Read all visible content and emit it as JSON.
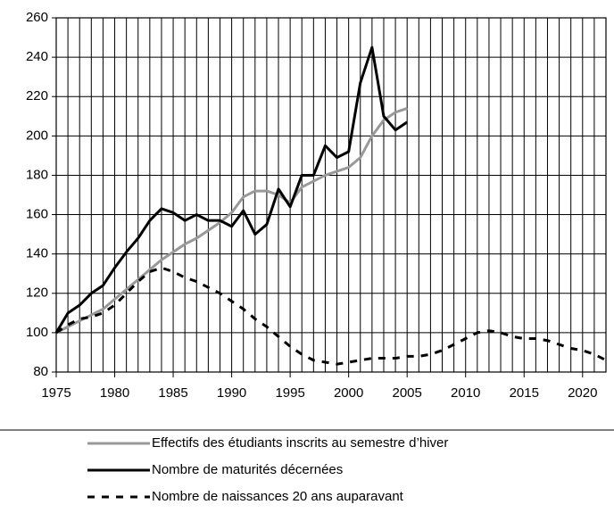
{
  "chart_data": {
    "type": "line",
    "x": [
      1975,
      1976,
      1977,
      1978,
      1979,
      1980,
      1981,
      1982,
      1983,
      1984,
      1985,
      1986,
      1987,
      1988,
      1989,
      1990,
      1991,
      1992,
      1993,
      1994,
      1995,
      1996,
      1997,
      1998,
      1999,
      2000,
      2001,
      2002,
      2003,
      2004,
      2005,
      2006,
      2007,
      2008,
      2009,
      2010,
      2011,
      2012,
      2013,
      2014,
      2015,
      2016,
      2017,
      2018,
      2019,
      2020,
      2021,
      2022
    ],
    "series": [
      {
        "name": "Effectifs des étudiants inscrits au semestre d’hiver",
        "color": "#999999",
        "dashed": false,
        "values": [
          100,
          103,
          106,
          109,
          112,
          117,
          122,
          127,
          132,
          137,
          141,
          145,
          148,
          152,
          156,
          161,
          169,
          172,
          172,
          170,
          166,
          174,
          177,
          180,
          182,
          184,
          189,
          200,
          208,
          212,
          214,
          null,
          null,
          null,
          null,
          null,
          null,
          null,
          null,
          null,
          null,
          null,
          null,
          null,
          null,
          null,
          null,
          null
        ]
      },
      {
        "name": "Nombre de maturités décernées",
        "color": "#000000",
        "dashed": false,
        "values": [
          100,
          110,
          114,
          120,
          124,
          133,
          141,
          148,
          157,
          163,
          161,
          157,
          160,
          157,
          157,
          154,
          162,
          150,
          155,
          173,
          164,
          180,
          180,
          195,
          189,
          192,
          227,
          245,
          210,
          203,
          207,
          null,
          null,
          null,
          null,
          null,
          null,
          null,
          null,
          null,
          null,
          null,
          null,
          null,
          null,
          null,
          null,
          null
        ]
      },
      {
        "name": "Nombre de naissances 20 ans auparavant",
        "color": "#000000",
        "dashed": true,
        "values": [
          100,
          104,
          107,
          108,
          110,
          114,
          120,
          126,
          131,
          133,
          131,
          128,
          126,
          123,
          120,
          116,
          112,
          107,
          103,
          98,
          93,
          89,
          86,
          85,
          84,
          85,
          86,
          87,
          87,
          87,
          88,
          88,
          89,
          91,
          94,
          97,
          100,
          101,
          100,
          98,
          97,
          97,
          96,
          94,
          92,
          91,
          89,
          86
        ]
      }
    ],
    "xlim": [
      1975,
      2022
    ],
    "xticks": [
      1975,
      1980,
      1985,
      1990,
      1995,
      2000,
      2005,
      2010,
      2015,
      2020
    ],
    "ylim": [
      80,
      260
    ],
    "yticks": [
      80,
      100,
      120,
      140,
      160,
      180,
      200,
      220,
      240,
      260
    ],
    "grid": true,
    "legend": "bottom"
  }
}
